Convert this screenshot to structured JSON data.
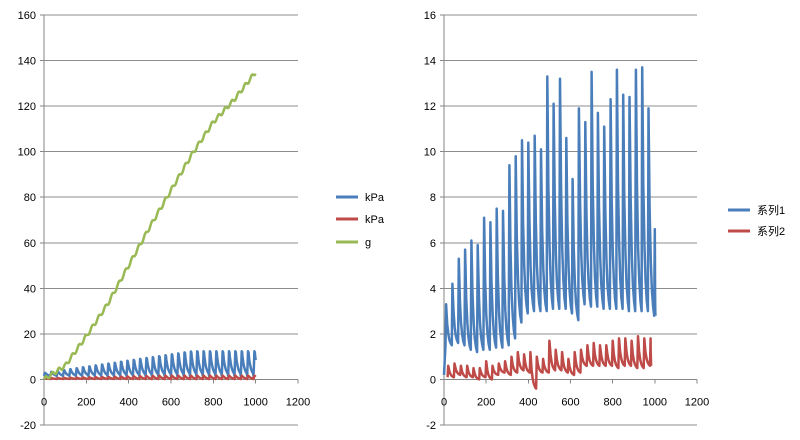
{
  "colors": {
    "blue": "#4a7ebb",
    "red": "#be4b48",
    "green": "#98b954",
    "grid": "#8c8c8c",
    "axis": "#868686"
  },
  "chart_data": [
    {
      "type": "line",
      "xlim": [
        0,
        1200
      ],
      "ylim": [
        -20,
        160
      ],
      "x_ticks": [
        "0",
        "200",
        "400",
        "600",
        "800",
        "1000",
        "1200"
      ],
      "y_ticks": [
        "-20",
        "0",
        "20",
        "40",
        "60",
        "80",
        "100",
        "120",
        "140",
        "160"
      ],
      "grid": true,
      "legend_position": "right",
      "series": [
        {
          "name": "kPa",
          "color": "#4a7ebb",
          "min_peak": 3,
          "max_peak": 13.7,
          "baseline": 1.5,
          "x": [
            0,
            100,
            200,
            300,
            400,
            500,
            600,
            700,
            800,
            900,
            1000
          ],
          "values": [
            1,
            4,
            6,
            9,
            10,
            12,
            10,
            11,
            12,
            13,
            12
          ]
        },
        {
          "name": "kPa",
          "color": "#be4b48",
          "baseline": 0.2,
          "peak": 1.8,
          "x": [
            0,
            200,
            400,
            600,
            800,
            1000
          ],
          "values": [
            0.2,
            0.3,
            0.8,
            1,
            1.2,
            1
          ]
        },
        {
          "name": "g",
          "color": "#98b954",
          "x": [
            0,
            50,
            100,
            200,
            300,
            400,
            500,
            600,
            700,
            800,
            900,
            1000
          ],
          "values": [
            0,
            3,
            6,
            19,
            33,
            50,
            67,
            83,
            99,
            113,
            123,
            135
          ]
        }
      ]
    },
    {
      "type": "line",
      "xlim": [
        0,
        1200
      ],
      "ylim": [
        -2,
        16
      ],
      "x_ticks": [
        "0",
        "200",
        "400",
        "600",
        "800",
        "1000",
        "1200"
      ],
      "y_ticks": [
        "-2",
        "0",
        "2",
        "4",
        "6",
        "8",
        "10",
        "12",
        "14",
        "16"
      ],
      "grid": true,
      "legend_position": "right",
      "series": [
        {
          "name": "系列1",
          "color": "#4a7ebb",
          "peaks_x": [
            10,
            40,
            70,
            100,
            130,
            160,
            190,
            220,
            250,
            280,
            310,
            340,
            370,
            400,
            430,
            460,
            490,
            520,
            550,
            580,
            610,
            640,
            670,
            700,
            730,
            760,
            790,
            820,
            850,
            880,
            910,
            940,
            970,
            1000
          ],
          "peaks": [
            3.3,
            4.2,
            5.3,
            5.7,
            6.1,
            5.9,
            7.1,
            6.9,
            7.5,
            7.4,
            9.4,
            9.8,
            10.5,
            10.4,
            10.7,
            10.1,
            13.3,
            12.1,
            13.2,
            10.6,
            8.8,
            11.9,
            11.3,
            13.5,
            11.7,
            11.1,
            12.3,
            13.6,
            12.5,
            12.4,
            13.6,
            13.7,
            11.9,
            6.6
          ],
          "troughs": [
            1.5,
            1.6,
            1.5,
            1.3,
            1.2,
            1.3,
            1.3,
            1.4,
            1.4,
            1.5,
            1.8,
            2.5,
            2.9,
            3,
            3,
            3,
            3.1,
            3.1,
            3.1,
            2.9,
            2.6,
            3.3,
            3.2,
            3.2,
            3.1,
            3.1,
            3.1,
            3.1,
            3,
            3,
            3,
            3,
            2.8,
            2.8
          ]
        },
        {
          "name": "系列2",
          "color": "#be4b48",
          "peaks_x": [
            20,
            50,
            80,
            110,
            140,
            170,
            200,
            230,
            260,
            290,
            320,
            350,
            380,
            410,
            440,
            470,
            500,
            530,
            560,
            590,
            620,
            650,
            680,
            710,
            740,
            770,
            800,
            830,
            860,
            890,
            920,
            950,
            980
          ],
          "peaks": [
            0.6,
            0.7,
            0.6,
            0.6,
            0.5,
            0.5,
            0.8,
            0.6,
            0.7,
            0.8,
            1,
            1.2,
            1.1,
            1.2,
            1,
            0.9,
            1.7,
            1.3,
            1.2,
            0.9,
            1.2,
            1.3,
            1.5,
            1.6,
            1.5,
            1.5,
            1.7,
            1.8,
            1.8,
            1.7,
            1.9,
            1.8,
            1.8
          ],
          "troughs": [
            0.1,
            0.2,
            0.1,
            0.1,
            0,
            0.1,
            0,
            0.2,
            0.3,
            0.2,
            0.3,
            0.4,
            0.3,
            -0.4,
            0.3,
            0.3,
            0.4,
            0.4,
            0.3,
            0.2,
            0.3,
            0.6,
            0.6,
            0.6,
            0.6,
            0.6,
            0.5,
            0.6,
            0.6,
            0.5,
            0.5,
            0.6,
            0.6
          ]
        }
      ]
    }
  ]
}
